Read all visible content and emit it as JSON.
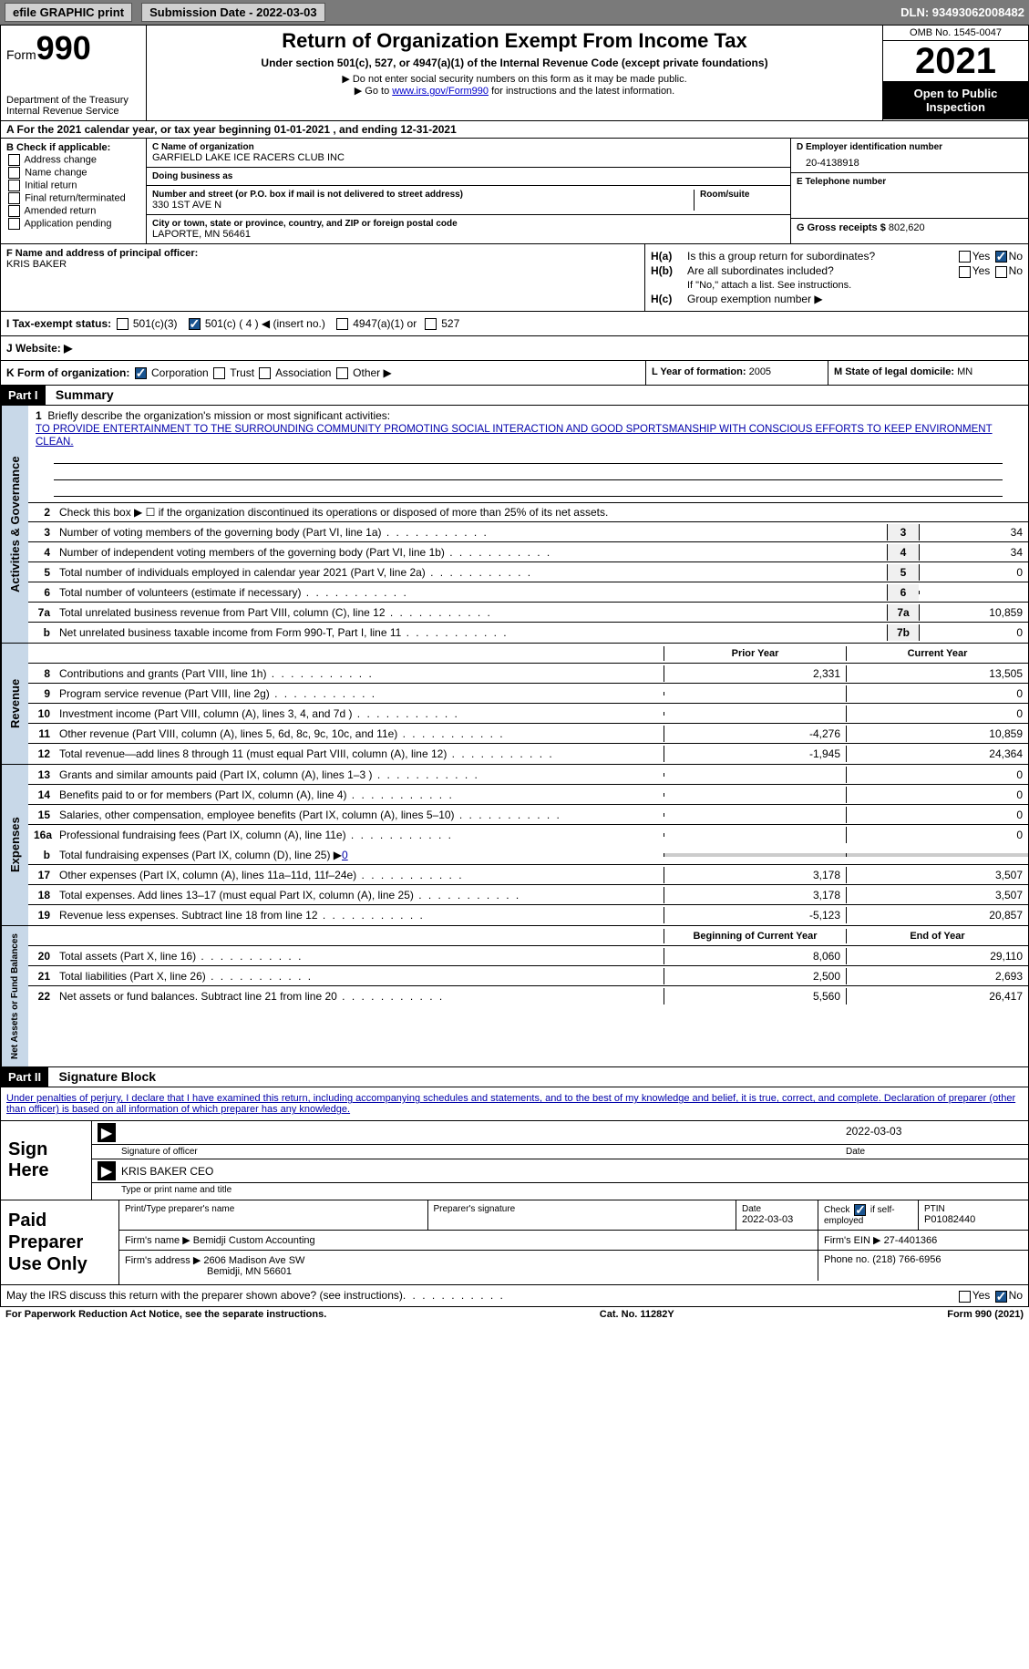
{
  "topbar": {
    "efile": "efile GRAPHIC print",
    "submission": "Submission Date - 2022-03-03",
    "dln": "DLN: 93493062008482"
  },
  "header": {
    "form_prefix": "Form",
    "form_number": "990",
    "dept": "Department of the Treasury Internal Revenue Service",
    "title": "Return of Organization Exempt From Income Tax",
    "subtitle": "Under section 501(c), 527, or 4947(a)(1) of the Internal Revenue Code (except private foundations)",
    "note1": "▶ Do not enter social security numbers on this form as it may be made public.",
    "note2_pre": "▶ Go to ",
    "note2_link": "www.irs.gov/Form990",
    "note2_post": " for instructions and the latest information.",
    "omb": "OMB No. 1545-0047",
    "year": "2021",
    "open": "Open to Public Inspection"
  },
  "row_a": "A For the 2021 calendar year, or tax year beginning 01-01-2021    , and ending 12-31-2021",
  "col_b": {
    "title": "B Check if applicable:",
    "items": [
      "Address change",
      "Name change",
      "Initial return",
      "Final return/terminated",
      "Amended return",
      "Application pending"
    ]
  },
  "col_c": {
    "name_label": "C Name of organization",
    "name": "GARFIELD LAKE ICE RACERS CLUB INC",
    "dba_label": "Doing business as",
    "dba": "",
    "street_label": "Number and street (or P.O. box if mail is not delivered to street address)",
    "room_label": "Room/suite",
    "street": "330 1ST AVE N",
    "city_label": "City or town, state or province, country, and ZIP or foreign postal code",
    "city": "LAPORTE, MN  56461"
  },
  "col_de": {
    "ein_label": "D Employer identification number",
    "ein": "20-4138918",
    "phone_label": "E Telephone number",
    "phone": "",
    "gross_label": "G Gross receipts $",
    "gross": "802,620"
  },
  "col_f": {
    "label": "F  Name and address of principal officer:",
    "name": "KRIS BAKER"
  },
  "col_h": {
    "a_label": "H(a)",
    "a_text": "Is this a group return for subordinates?",
    "b_label": "H(b)",
    "b_text": "Are all subordinates included?",
    "b_note": "If \"No,\" attach a list. See instructions.",
    "c_label": "H(c)",
    "c_text": "Group exemption number ▶",
    "yes": "Yes",
    "no": "No"
  },
  "row_i": {
    "label": "I   Tax-exempt status:",
    "opt1": "501(c)(3)",
    "opt2": "501(c) ( 4 ) ◀ (insert no.)",
    "opt3": "4947(a)(1) or",
    "opt4": "527"
  },
  "row_j": "J   Website: ▶",
  "row_k": {
    "label": "K Form of organization:",
    "opts": [
      "Corporation",
      "Trust",
      "Association",
      "Other ▶"
    ],
    "l_label": "L Year of formation:",
    "l_val": "2005",
    "m_label": "M State of legal domicile:",
    "m_val": "MN"
  },
  "parts": {
    "p1": "Part I",
    "p1_title": "Summary",
    "p2": "Part II",
    "p2_title": "Signature Block"
  },
  "vert": {
    "ag": "Activities & Governance",
    "rev": "Revenue",
    "exp": "Expenses",
    "net": "Net Assets or Fund Balances"
  },
  "summary": {
    "line1_label": "Briefly describe the organization's mission or most significant activities:",
    "mission": "TO PROVIDE ENTERTAINMENT TO THE SURROUNDING COMMUNITY PROMOTING SOCIAL INTERACTION AND GOOD SPORTSMANSHIP WITH CONSCIOUS EFFORTS TO KEEP ENVIRONMENT CLEAN.",
    "line2": "Check this box ▶ ☐  if the organization discontinued its operations or disposed of more than 25% of its net assets.",
    "lines": [
      {
        "n": "3",
        "t": "Number of voting members of the governing body (Part VI, line 1a)",
        "box": "3",
        "v": "34"
      },
      {
        "n": "4",
        "t": "Number of independent voting members of the governing body (Part VI, line 1b)",
        "box": "4",
        "v": "34"
      },
      {
        "n": "5",
        "t": "Total number of individuals employed in calendar year 2021 (Part V, line 2a)",
        "box": "5",
        "v": "0"
      },
      {
        "n": "6",
        "t": "Total number of volunteers (estimate if necessary)",
        "box": "6",
        "v": ""
      },
      {
        "n": "7a",
        "t": "Total unrelated business revenue from Part VIII, column (C), line 12",
        "box": "7a",
        "v": "10,859"
      },
      {
        "n": "b",
        "t": "Net unrelated business taxable income from Form 990-T, Part I, line 11",
        "box": "7b",
        "v": "0"
      }
    ],
    "col_prior": "Prior Year",
    "col_current": "Current Year",
    "rev_lines": [
      {
        "n": "8",
        "t": "Contributions and grants (Part VIII, line 1h)",
        "p": "2,331",
        "c": "13,505"
      },
      {
        "n": "9",
        "t": "Program service revenue (Part VIII, line 2g)",
        "p": "",
        "c": "0"
      },
      {
        "n": "10",
        "t": "Investment income (Part VIII, column (A), lines 3, 4, and 7d )",
        "p": "",
        "c": "0"
      },
      {
        "n": "11",
        "t": "Other revenue (Part VIII, column (A), lines 5, 6d, 8c, 9c, 10c, and 11e)",
        "p": "-4,276",
        "c": "10,859"
      },
      {
        "n": "12",
        "t": "Total revenue—add lines 8 through 11 (must equal Part VIII, column (A), line 12)",
        "p": "-1,945",
        "c": "24,364"
      }
    ],
    "exp_lines": [
      {
        "n": "13",
        "t": "Grants and similar amounts paid (Part IX, column (A), lines 1–3 )",
        "p": "",
        "c": "0"
      },
      {
        "n": "14",
        "t": "Benefits paid to or for members (Part IX, column (A), line 4)",
        "p": "",
        "c": "0"
      },
      {
        "n": "15",
        "t": "Salaries, other compensation, employee benefits (Part IX, column (A), lines 5–10)",
        "p": "",
        "c": "0"
      },
      {
        "n": "16a",
        "t": "Professional fundraising fees (Part IX, column (A), line 11e)",
        "p": "",
        "c": "0"
      }
    ],
    "line_b": {
      "n": "b",
      "t": "Total fundraising expenses (Part IX, column (D), line 25) ▶",
      "v": "0"
    },
    "exp_lines2": [
      {
        "n": "17",
        "t": "Other expenses (Part IX, column (A), lines 11a–11d, 11f–24e)",
        "p": "3,178",
        "c": "3,507"
      },
      {
        "n": "18",
        "t": "Total expenses. Add lines 13–17 (must equal Part IX, column (A), line 25)",
        "p": "3,178",
        "c": "3,507"
      },
      {
        "n": "19",
        "t": "Revenue less expenses. Subtract line 18 from line 12",
        "p": "-5,123",
        "c": "20,857"
      }
    ],
    "col_begin": "Beginning of Current Year",
    "col_end": "End of Year",
    "net_lines": [
      {
        "n": "20",
        "t": "Total assets (Part X, line 16)",
        "p": "8,060",
        "c": "29,110"
      },
      {
        "n": "21",
        "t": "Total liabilities (Part X, line 26)",
        "p": "2,500",
        "c": "2,693"
      },
      {
        "n": "22",
        "t": "Net assets or fund balances. Subtract line 21 from line 20",
        "p": "5,560",
        "c": "26,417"
      }
    ]
  },
  "sig": {
    "declaration": "Under penalties of perjury, I declare that I have examined this return, including accompanying schedules and statements, and to the best of my knowledge and belief, it is true, correct, and complete. Declaration of preparer (other than officer) is based on all information of which preparer has any knowledge.",
    "sign_here": "Sign Here",
    "sig_officer": "Signature of officer",
    "date_val": "2022-03-03",
    "date_label": "Date",
    "name_title": "KRIS BAKER  CEO",
    "type_label": "Type or print name and title",
    "paid": "Paid Preparer Use Only",
    "print_label": "Print/Type preparer's name",
    "prep_sig_label": "Preparer's signature",
    "prep_date_label": "Date",
    "prep_date": "2022-03-03",
    "check_label": "Check ☑ if self-employed",
    "ptin_label": "PTIN",
    "ptin": "P01082440",
    "firm_name_label": "Firm's name    ▶",
    "firm_name": "Bemidji Custom Accounting",
    "firm_ein_label": "Firm's EIN ▶",
    "firm_ein": "27-4401366",
    "firm_addr_label": "Firm's address ▶",
    "firm_addr": "2606 Madison Ave SW",
    "firm_city": "Bemidji, MN  56601",
    "phone_label": "Phone no.",
    "phone": "(218) 766-6956",
    "discuss": "May the IRS discuss this return with the preparer shown above? (see instructions)"
  },
  "footer": {
    "left": "For Paperwork Reduction Act Notice, see the separate instructions.",
    "mid": "Cat. No. 11282Y",
    "right": "Form 990 (2021)"
  }
}
